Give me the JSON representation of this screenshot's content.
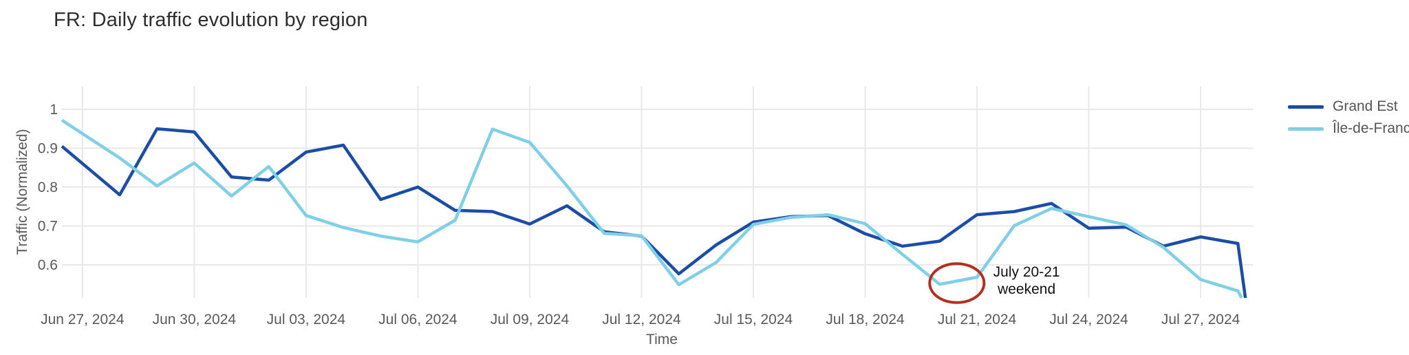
{
  "chart_data": {
    "type": "line",
    "title": "FR: Daily traffic evolution by region",
    "xlabel": "Time",
    "ylabel": "Traffic (Normalized)",
    "x_start_date": "Jun 27, 2024",
    "x_unit": "days since Jun 27, 2024",
    "x_tick_days": [
      0,
      3,
      6,
      9,
      12,
      15,
      18,
      21,
      24,
      27,
      30
    ],
    "x_tick_labels": [
      "Jun 27, 2024",
      "Jun 30, 2024",
      "Jul 03, 2024",
      "Jul 06, 2024",
      "Jul 09, 2024",
      "Jul 12, 2024",
      "Jul 15, 2024",
      "Jul 18, 2024",
      "Jul 21, 2024",
      "Jul 24, 2024",
      "Jul 27, 2024"
    ],
    "y_tick_values": [
      0.6,
      0.7,
      0.8,
      0.9,
      1
    ],
    "y_tick_labels": [
      "0.6",
      "0.7",
      "0.8",
      "0.9",
      "1"
    ],
    "x_range_days": [
      -0.55,
      31.4
    ],
    "y_range": [
      0.515,
      1.06
    ],
    "grid_on": true,
    "grid_color": "#e8e8e8",
    "tick_label_color": "#5a5a5a",
    "legend_position": "top-right-outside",
    "series": [
      {
        "name": "Grand Est",
        "color": "#1b4da6",
        "points": [
          [
            -0.55,
            0.905
          ],
          [
            1,
            0.78
          ],
          [
            2,
            0.95
          ],
          [
            3,
            0.942
          ],
          [
            4,
            0.826
          ],
          [
            5,
            0.818
          ],
          [
            6,
            0.89
          ],
          [
            7,
            0.908
          ],
          [
            8,
            0.768
          ],
          [
            9,
            0.8
          ],
          [
            10,
            0.74
          ],
          [
            11,
            0.737
          ],
          [
            12,
            0.705
          ],
          [
            13,
            0.752
          ],
          [
            14,
            0.685
          ],
          [
            15,
            0.674
          ],
          [
            16,
            0.577
          ],
          [
            17,
            0.651
          ],
          [
            18,
            0.71
          ],
          [
            19,
            0.724
          ],
          [
            20,
            0.727
          ],
          [
            21,
            0.68
          ],
          [
            22,
            0.648
          ],
          [
            23,
            0.661
          ],
          [
            24,
            0.729
          ],
          [
            25,
            0.737
          ],
          [
            26,
            0.758
          ],
          [
            27,
            0.694
          ],
          [
            28,
            0.697
          ],
          [
            29,
            0.648
          ],
          [
            30,
            0.672
          ],
          [
            31,
            0.655
          ],
          [
            31.2,
            0.515
          ]
        ]
      },
      {
        "name": "Île-de-France",
        "color": "#7fd0e6",
        "points": [
          [
            -0.55,
            0.972
          ],
          [
            1,
            0.875
          ],
          [
            2,
            0.803
          ],
          [
            3,
            0.862
          ],
          [
            4,
            0.777
          ],
          [
            5,
            0.853
          ],
          [
            6,
            0.727
          ],
          [
            7,
            0.696
          ],
          [
            8,
            0.674
          ],
          [
            9,
            0.659
          ],
          [
            10,
            0.715
          ],
          [
            11,
            0.949
          ],
          [
            12,
            0.915
          ],
          [
            13,
            0.803
          ],
          [
            14,
            0.681
          ],
          [
            15,
            0.675
          ],
          [
            16,
            0.549
          ],
          [
            17,
            0.606
          ],
          [
            18,
            0.704
          ],
          [
            19,
            0.722
          ],
          [
            20,
            0.729
          ],
          [
            21,
            0.706
          ],
          [
            22,
            0.627
          ],
          [
            23,
            0.55
          ],
          [
            24,
            0.568
          ],
          [
            25,
            0.701
          ],
          [
            26,
            0.745
          ],
          [
            27,
            0.724
          ],
          [
            28,
            0.703
          ],
          [
            29,
            0.645
          ],
          [
            30,
            0.562
          ],
          [
            31,
            0.533
          ],
          [
            31.1,
            0.515
          ]
        ]
      }
    ],
    "annotation": {
      "line1": "July 20-21",
      "line2": "weekend",
      "text_color": "#111111",
      "text_day": 25.33,
      "text_value": 0.56,
      "ellipse": {
        "cx_day": 23.46,
        "cy_value": 0.553,
        "rx_days": 0.73,
        "ry_value": 0.05,
        "stroke": "#b23020",
        "stroke_width": 4
      }
    }
  }
}
